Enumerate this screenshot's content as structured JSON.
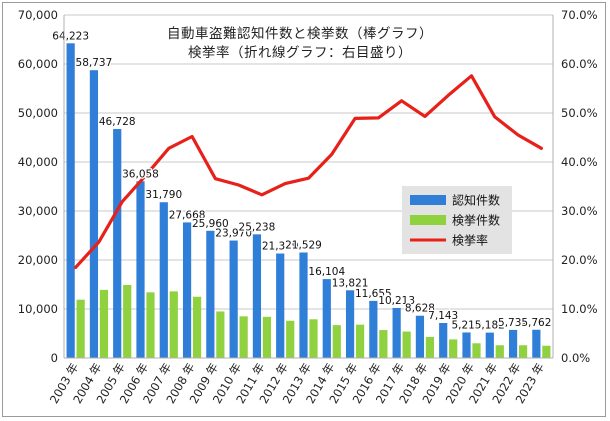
{
  "chart_data": {
    "type": "bar",
    "title_line1": "自動車盗難認知件数と検挙数（棒グラフ）",
    "title_line2": "検挙率（折れ線グラフ：右目盛り）",
    "categories": [
      "2003 年",
      "2004 年",
      "2005 年",
      "2006 年",
      "2007 年",
      "2008 年",
      "2009 年",
      "2010 年",
      "2011 年",
      "2012 年",
      "2013 年",
      "2014 年",
      "2015 年",
      "2016 年",
      "2017 年",
      "2018 年",
      "2019 年",
      "2020 年",
      "2021 年",
      "2022 年",
      "2023 年"
    ],
    "series": [
      {
        "name": "認知件数",
        "type": "bar",
        "color": "#2f7ed8",
        "values": [
          64223,
          58737,
          46728,
          36058,
          31790,
          27668,
          25960,
          23970,
          25238,
          21319,
          21529,
          16104,
          13821,
          11655,
          10213,
          8628,
          7143,
          5210,
          5182,
          5734,
          5762
        ],
        "labels": [
          "64,223",
          "58,737",
          "46,728",
          "36,058",
          "31,790",
          "27,668",
          "25,960",
          "23,970",
          "25,238",
          "21,319",
          "21,529",
          "16,104",
          "13,821",
          "11,655",
          "10,213",
          "8,628",
          "7,143",
          "5,210",
          "5,182",
          "5,734",
          "5,762"
        ]
      },
      {
        "name": "検挙件数",
        "type": "bar",
        "color": "#8fd13f",
        "values": [
          11900,
          13900,
          14900,
          13400,
          13600,
          12500,
          9500,
          8500,
          8400,
          7600,
          7900,
          6700,
          6800,
          5700,
          5400,
          4300,
          3800,
          3000,
          2600,
          2600,
          2500
        ]
      },
      {
        "name": "検挙率",
        "type": "line",
        "color": "#e8201a",
        "axis": "right",
        "values": [
          18.5,
          23.7,
          31.9,
          37.2,
          42.8,
          45.2,
          36.6,
          35.3,
          33.3,
          35.6,
          36.7,
          41.6,
          48.9,
          49.0,
          52.5,
          49.3,
          53.6,
          57.6,
          49.2,
          45.5,
          42.8
        ]
      }
    ],
    "y_left": {
      "min": 0,
      "max": 70000,
      "ticks": [
        "0",
        "10,000",
        "20,000",
        "30,000",
        "40,000",
        "50,000",
        "60,000",
        "70,000"
      ]
    },
    "y_right": {
      "min": 0,
      "max": 70,
      "ticks": [
        "0.0%",
        "10.0%",
        "20.0%",
        "30.0%",
        "40.0%",
        "50.0%",
        "60.0%",
        "70.0%"
      ]
    },
    "grid": true,
    "legend_position": "right-middle"
  }
}
